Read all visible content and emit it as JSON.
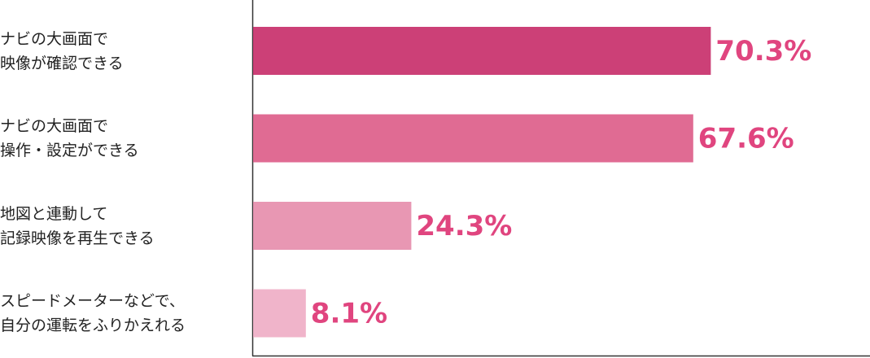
{
  "chart_data": {
    "type": "bar",
    "orientation": "horizontal",
    "categories": [
      "ナビの大画面で\n映像が確認できる",
      "ナビの大画面で\n操作・設定ができる",
      "地図と連動して\n記録映像を再生できる",
      "スピードメーターなどで、\n自分の運転をふりかえれる"
    ],
    "values": [
      70.3,
      67.6,
      24.3,
      8.1
    ],
    "value_labels": [
      "70.3%",
      "67.6%",
      "24.3%",
      "8.1%"
    ],
    "colors": [
      "#cc4077",
      "#e06b93",
      "#e897b3",
      "#f0b4ca"
    ],
    "label_color": "#e0457f"
  }
}
